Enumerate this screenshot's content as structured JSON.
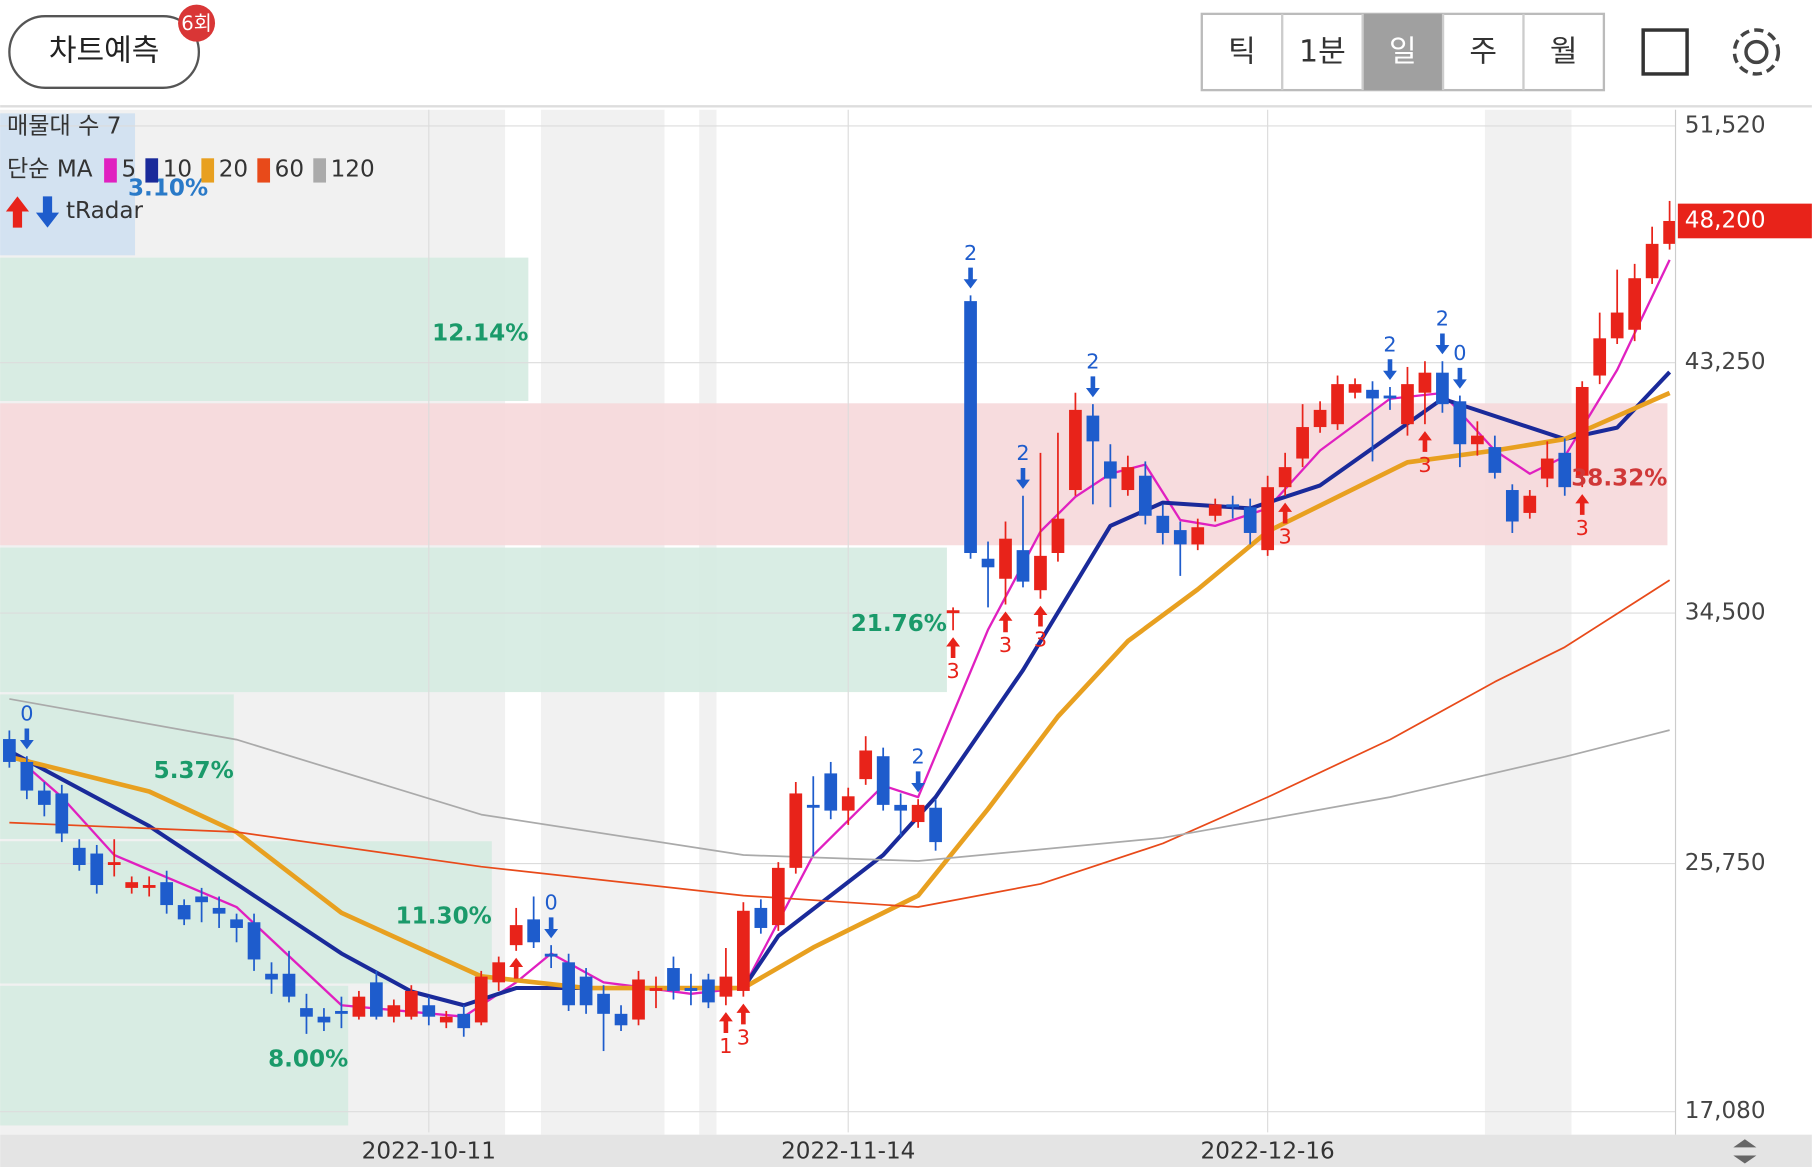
{
  "header": {
    "button": "차트예측",
    "badge": "6회",
    "tabs": [
      "틱",
      "1분",
      "일",
      "주",
      "월"
    ],
    "selected_tab": 2
  },
  "chart_data": {
    "type": "candlestick",
    "categories": [
      null,
      null,
      null,
      null,
      null,
      null,
      null,
      null,
      null,
      null,
      null,
      null,
      null,
      null,
      null,
      null,
      null,
      null,
      null,
      null,
      null,
      null,
      null,
      null,
      "2022-10-11",
      null,
      null,
      null,
      null,
      null,
      null,
      null,
      null,
      null,
      null,
      null,
      null,
      null,
      null,
      null,
      null,
      null,
      null,
      null,
      null,
      null,
      null,
      null,
      "2022-11-14",
      null,
      null,
      null,
      null,
      null,
      null,
      null,
      null,
      null,
      null,
      null,
      null,
      null,
      null,
      null,
      null,
      null,
      null,
      null,
      null,
      null,
      null,
      null,
      "2022-12-16",
      null,
      null,
      null,
      null,
      null,
      null,
      null,
      null,
      null,
      null,
      null,
      null,
      null,
      null,
      null,
      null,
      null,
      null,
      null,
      null,
      null,
      null,
      null
    ],
    "open": [
      30100,
      29300,
      28300,
      28200,
      26300,
      26100,
      25700,
      24900,
      24900,
      25100,
      24300,
      24600,
      24200,
      23800,
      23700,
      21900,
      21900,
      20700,
      20400,
      20600,
      20400,
      21600,
      20400,
      20400,
      20800,
      20200,
      20500,
      20200,
      21600,
      22900,
      23800,
      22600,
      22300,
      21800,
      21200,
      20500,
      20300,
      21300,
      22100,
      21400,
      21700,
      21100,
      21300,
      24200,
      23600,
      25600,
      27800,
      28900,
      27600,
      28700,
      29500,
      27800,
      27200,
      27700,
      34500,
      45400,
      36400,
      35700,
      36700,
      35300,
      36600,
      38800,
      41400,
      39800,
      38800,
      39300,
      37900,
      37400,
      36900,
      37900,
      38300,
      38200,
      36700,
      38900,
      39900,
      41000,
      41100,
      42200,
      42300,
      42100,
      41100,
      42200,
      42900,
      41900,
      40400,
      40300,
      38800,
      38000,
      39200,
      40100,
      39300,
      42800,
      44100,
      44400,
      46200,
      47400
    ],
    "high": [
      30400,
      29500,
      28600,
      28500,
      26600,
      26400,
      26600,
      25300,
      25300,
      25500,
      24500,
      24900,
      24600,
      24000,
      24000,
      22300,
      22700,
      21200,
      20700,
      21100,
      21300,
      22000,
      21000,
      21500,
      21100,
      20600,
      20800,
      22000,
      22500,
      24200,
      24600,
      22900,
      22600,
      22100,
      21500,
      20800,
      22000,
      21800,
      22500,
      21900,
      21900,
      22800,
      24400,
      24500,
      25800,
      28600,
      28800,
      29300,
      28400,
      30200,
      29800,
      28200,
      28000,
      28000,
      34700,
      45600,
      37000,
      37700,
      38600,
      40100,
      40800,
      42200,
      41800,
      40400,
      40000,
      39800,
      38300,
      37700,
      37800,
      38500,
      38600,
      38500,
      39300,
      40100,
      41800,
      41900,
      42800,
      42700,
      42600,
      42400,
      43100,
      43300,
      43300,
      42100,
      41200,
      40700,
      39000,
      38800,
      40500,
      40600,
      42600,
      45000,
      46500,
      46700,
      48000,
      48900
    ],
    "low": [
      29100,
      28000,
      27400,
      26500,
      25500,
      24700,
      25300,
      24700,
      24600,
      24000,
      23600,
      23700,
      23500,
      23000,
      22000,
      21200,
      20900,
      19800,
      19900,
      20000,
      20300,
      20300,
      20200,
      20300,
      20100,
      20000,
      19700,
      20100,
      21300,
      22700,
      22800,
      22100,
      20600,
      20500,
      19200,
      19900,
      20100,
      20700,
      21000,
      20800,
      20700,
      20800,
      21100,
      23300,
      23400,
      25400,
      26000,
      27300,
      27100,
      28500,
      27600,
      26700,
      27000,
      26200,
      33900,
      36400,
      34700,
      34800,
      35400,
      35000,
      36300,
      38600,
      38300,
      38200,
      38600,
      37600,
      36900,
      35800,
      36700,
      37700,
      37800,
      36900,
      36500,
      38600,
      39600,
      40800,
      40900,
      42000,
      39800,
      41600,
      40700,
      41100,
      41500,
      39600,
      40000,
      39200,
      37300,
      37800,
      38900,
      38600,
      38900,
      42500,
      43900,
      44000,
      46000,
      47200
    ],
    "close": [
      29300,
      28300,
      27800,
      26800,
      25700,
      25000,
      25800,
      25100,
      25000,
      24300,
      23800,
      24400,
      24000,
      23500,
      22400,
      21700,
      21100,
      20400,
      20200,
      20500,
      21100,
      20400,
      20800,
      21300,
      20400,
      20400,
      20000,
      21800,
      22300,
      23600,
      23000,
      22500,
      20800,
      20800,
      20500,
      20100,
      21700,
      21400,
      21300,
      21300,
      20900,
      21800,
      24100,
      23500,
      25600,
      28200,
      27700,
      27600,
      28100,
      29700,
      27800,
      27600,
      27800,
      26500,
      34600,
      36600,
      36100,
      37100,
      35600,
      36500,
      37800,
      41600,
      40500,
      39200,
      39600,
      37900,
      37300,
      36900,
      37500,
      38300,
      38200,
      37300,
      38900,
      39600,
      41000,
      41600,
      42500,
      42500,
      42000,
      42000,
      42500,
      42900,
      41800,
      40400,
      40700,
      39400,
      37700,
      38600,
      39900,
      38900,
      42400,
      44100,
      45000,
      46200,
      47400,
      48200
    ],
    "up_color": "#e8231a",
    "down_color": "#1e5ccc",
    "ylim": [
      16360,
      52085
    ],
    "yticks": [
      {
        "value": 17080,
        "label": "17,080"
      },
      {
        "value": 25750,
        "label": "25,750"
      },
      {
        "value": 34500,
        "label": "34,500"
      },
      {
        "value": 43250,
        "label": "43,250"
      },
      {
        "value": 51520,
        "label": "51,520"
      }
    ],
    "grid": true,
    "last_price_label": "48,200",
    "ma_legend_title": "단순 MA",
    "moving_averages": [
      {
        "name": "5",
        "color": "#e020c0",
        "width": 2,
        "x": [
          0,
          3,
          6,
          13,
          19,
          26,
          29,
          31,
          34,
          39,
          42,
          46,
          50,
          52,
          56,
          59,
          61,
          63,
          65,
          67,
          69,
          72,
          75,
          79,
          82,
          85,
          87,
          89,
          92,
          95
        ],
        "values": [
          29680,
          28070,
          26050,
          24230,
          20800,
          20400,
          21600,
          22610,
          21600,
          21200,
          21400,
          26050,
          28470,
          28070,
          33920,
          37350,
          38560,
          39370,
          39690,
          37750,
          37550,
          38160,
          40180,
          41990,
          42190,
          40180,
          39370,
          39970,
          43000,
          46840
        ]
      },
      {
        "name": "10",
        "color": "#1a2a9a",
        "width": 3.5,
        "x": [
          0,
          8,
          13,
          19,
          23,
          26,
          29,
          33,
          42,
          44,
          50,
          53,
          58,
          63,
          66,
          71,
          75,
          82,
          89,
          92,
          95
        ],
        "values": [
          29680,
          27060,
          25040,
          22610,
          21280,
          20800,
          21400,
          21400,
          21400,
          23220,
          26050,
          28070,
          32510,
          37550,
          38360,
          38160,
          38960,
          41990,
          40580,
          40980,
          42920
        ]
      },
      {
        "name": "20",
        "color": "#e8a020",
        "width": 4,
        "x": [
          0,
          8,
          13,
          19,
          27,
          33,
          42,
          46,
          52,
          56,
          60,
          64,
          68,
          72,
          80,
          85,
          89,
          95
        ],
        "values": [
          29480,
          28270,
          26850,
          24030,
          21810,
          21400,
          21400,
          22820,
          24630,
          27660,
          30890,
          33520,
          35330,
          37350,
          39770,
          40180,
          40580,
          42190
        ]
      },
      {
        "name": "60",
        "color": "#e84a1a",
        "width": 1.5,
        "x": [
          0,
          13,
          27,
          42,
          52,
          59,
          66,
          72,
          79,
          85,
          89,
          95
        ],
        "values": [
          27180,
          26850,
          25640,
          24630,
          24230,
          25040,
          26450,
          28070,
          30080,
          32100,
          33310,
          35650
        ]
      },
      {
        "name": "120",
        "color": "#aaaaaa",
        "width": 1.5,
        "x": [
          0,
          13,
          27,
          42,
          52,
          66,
          79,
          89,
          95
        ],
        "values": [
          31500,
          30080,
          27460,
          26050,
          25840,
          26650,
          28070,
          29480,
          30410
        ]
      }
    ],
    "volume_profile": {
      "title": "매물대 수 7",
      "edges": [
        16560,
        21520,
        26570,
        31700,
        36830,
        41870,
        46960,
        52000
      ],
      "percents": [
        8,
        11.3,
        5.37,
        21.76,
        38.32,
        12.14,
        3.1
      ],
      "labels": [
        "8.00%",
        "11.30%",
        "5.37%",
        "21.76%",
        "38.32%",
        "12.14%",
        "3.10%"
      ],
      "colors": [
        "#d5ebe1",
        "#d5ebe1",
        "#d5ebe1",
        "#d5ebe1",
        "#f6d8da",
        "#d5ebe1",
        "#cfe0f1"
      ],
      "label_colors": [
        "#1a9a6a",
        "#1a9a6a",
        "#1a9a6a",
        "#1a9a6a",
        "#d03838",
        "#1a9a6a",
        "#2a7ac8"
      ]
    },
    "tradar_label": "tRadar",
    "signals": [
      {
        "index": 1,
        "dir": "down",
        "label": "0"
      },
      {
        "index": 29,
        "dir": "up"
      },
      {
        "index": 31,
        "dir": "down",
        "label": "0"
      },
      {
        "index": 41,
        "dir": "up",
        "label": "1"
      },
      {
        "index": 42,
        "dir": "up",
        "label": "3"
      },
      {
        "index": 52,
        "dir": "down",
        "label": "2"
      },
      {
        "index": 54,
        "dir": "up",
        "label": "3"
      },
      {
        "index": 55,
        "dir": "down",
        "label": "2"
      },
      {
        "index": 57,
        "dir": "up",
        "label": "3"
      },
      {
        "index": 58,
        "dir": "down",
        "label": "2"
      },
      {
        "index": 59,
        "dir": "up",
        "label": "3"
      },
      {
        "index": 62,
        "dir": "down",
        "label": "2"
      },
      {
        "index": 73,
        "dir": "up",
        "label": "3"
      },
      {
        "index": 79,
        "dir": "down",
        "label": "2"
      },
      {
        "index": 81,
        "dir": "up",
        "label": "3"
      },
      {
        "index": 82,
        "dir": "down",
        "label": "2"
      },
      {
        "index": 83,
        "dir": "down",
        "label": "0"
      },
      {
        "index": 90,
        "dir": "up",
        "label": "3"
      }
    ]
  }
}
